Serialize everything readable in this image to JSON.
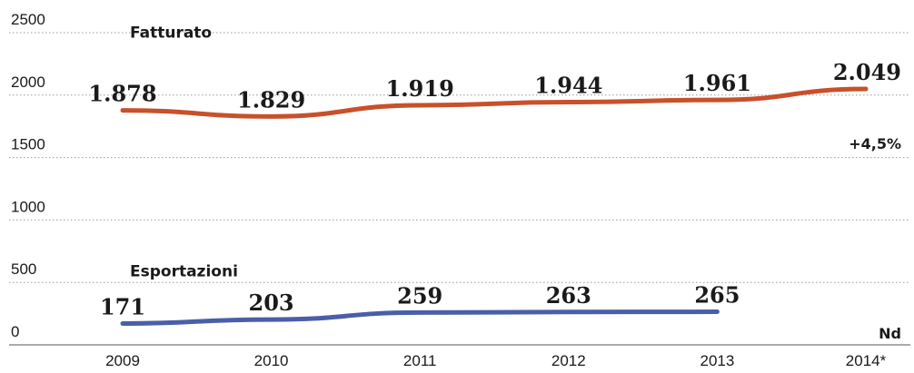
{
  "chart_data": {
    "type": "line",
    "categories": [
      "2009",
      "2010",
      "2011",
      "2012",
      "2013",
      "2014*"
    ],
    "ylim": [
      0,
      2500
    ],
    "yticks": [
      0,
      500,
      1000,
      1500,
      2000,
      2500
    ],
    "grid": true,
    "series": [
      {
        "name": "Fatturato",
        "values": [
          1878,
          1829,
          1919,
          1944,
          1961,
          2049
        ],
        "labels": [
          "1.878",
          "1.829",
          "1.919",
          "1.944",
          "1.961",
          "2.049"
        ],
        "color": "#c8502a"
      },
      {
        "name": "Esportazioni",
        "values": [
          171,
          203,
          259,
          263,
          265,
          null
        ],
        "labels": [
          "171",
          "203",
          "259",
          "263",
          "265",
          "Nd"
        ],
        "color": "#4a5fa8"
      }
    ],
    "annotations": [
      {
        "text": "+4,5%",
        "series": "Fatturato",
        "category": "2014*"
      }
    ]
  }
}
